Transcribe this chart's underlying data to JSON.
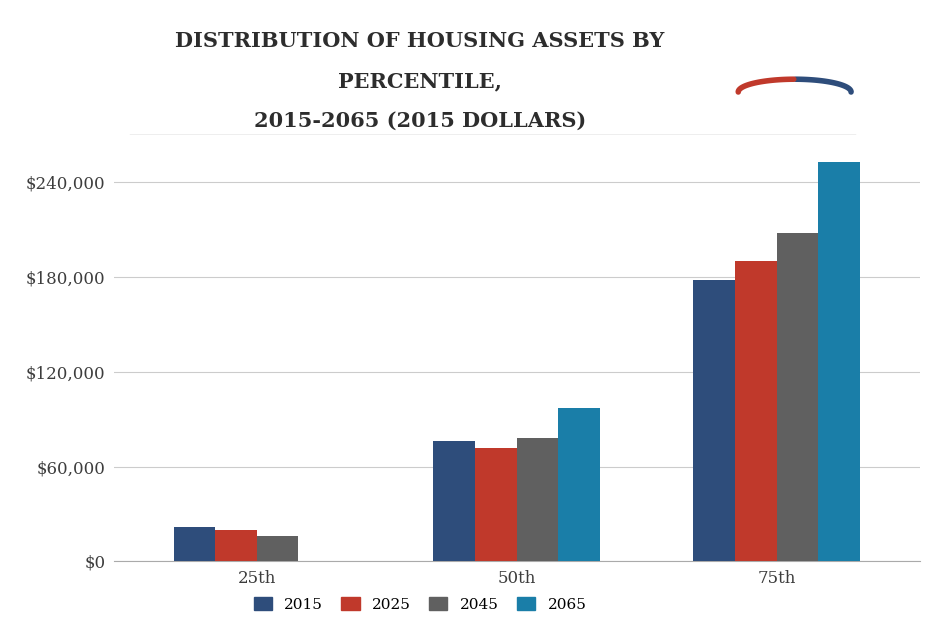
{
  "title_line1": "DISTRIBUTION OF HOUSING ASSETS BY",
  "title_line2": "PERCENTILE,",
  "title_line3": "2015-2065 (2015 DOLLARS)",
  "categories": [
    "25th",
    "50th",
    "75th"
  ],
  "series": {
    "2015": [
      22000,
      76000,
      178000
    ],
    "2025": [
      20000,
      72000,
      190000
    ],
    "2045": [
      16000,
      78000,
      208000
    ],
    "2065": [
      0,
      97000,
      253000
    ]
  },
  "colors": {
    "2015": "#2E4D7B",
    "2025": "#C0392B",
    "2045": "#606060",
    "2065": "#1A7EA8"
  },
  "ylim": [
    0,
    270000
  ],
  "yticks": [
    0,
    60000,
    120000,
    180000,
    240000
  ],
  "ytick_labels": [
    "$0",
    "$60,000",
    "$120,000",
    "$180,000",
    "$240,000"
  ],
  "legend_labels": [
    "2015",
    "2025",
    "2045",
    "2065"
  ],
  "background_color": "#FFFFFF",
  "grid_color": "#CCCCCC",
  "bar_width": 0.16,
  "title_fontsize": 15,
  "tick_fontsize": 12
}
